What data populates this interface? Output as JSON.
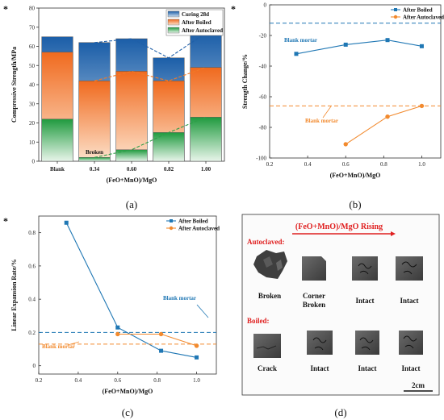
{
  "panels": {
    "a": {
      "label": "(a)",
      "star": "*"
    },
    "b": {
      "label": "(b)",
      "star": "*"
    },
    "c": {
      "label": "(c)",
      "star": "*"
    },
    "d": {
      "label": "(d)"
    }
  },
  "chart_data": [
    {
      "id": "a",
      "type": "bar",
      "ylabel": "Compressive Strength/MPa",
      "xlabel": "(FeO+MnO)/MgO",
      "categories": [
        "Blank",
        "0.34",
        "0.60",
        "0.82",
        "1.00"
      ],
      "ylim": [
        0,
        80
      ],
      "yticks": [
        0,
        10,
        20,
        30,
        40,
        50,
        60,
        70,
        80
      ],
      "series": [
        {
          "name": "Curing 28d",
          "values": [
            65,
            62,
            64,
            54,
            67
          ],
          "color": "#1f6fb8"
        },
        {
          "name": "After Boiled",
          "values": [
            57,
            42,
            47,
            42,
            49
          ],
          "color": "#f08030"
        },
        {
          "name": "After Autoclaved",
          "values": [
            22,
            2,
            6,
            15,
            23
          ],
          "color": "#2e9e48"
        }
      ],
      "annotations": [
        {
          "text": "Broken",
          "category": "0.34"
        }
      ],
      "legend": "top-right"
    },
    {
      "id": "b",
      "type": "line",
      "ylabel": "Strength Change/%",
      "xlabel": "(FeO+MnO)/MgO",
      "xlim": [
        0.2,
        1.1
      ],
      "ylim": [
        -100,
        0
      ],
      "xticks": [
        0.2,
        0.4,
        0.6,
        0.8,
        1.0
      ],
      "yticks": [
        -100,
        -80,
        -60,
        -40,
        -20,
        0
      ],
      "series": [
        {
          "name": "After Boiled",
          "x": [
            0.34,
            0.6,
            0.82,
            1.0
          ],
          "y": [
            -32,
            -26,
            -23,
            -27
          ],
          "color": "#1f77b4",
          "marker": "square",
          "reference": -12
        },
        {
          "name": "After Autoclaved",
          "x": [
            0.6,
            0.82,
            1.0
          ],
          "y": [
            -91,
            -73,
            -66
          ],
          "color": "#f28a2e",
          "marker": "circle",
          "reference": -66
        }
      ],
      "annotations": [
        {
          "text": "Blank mortar",
          "color": "#1f77b4"
        },
        {
          "text": "Blank mortar",
          "color": "#f28a2e"
        }
      ],
      "legend": "top-right"
    },
    {
      "id": "c",
      "type": "line",
      "ylabel": "Linear Expansion Rate/%",
      "xlabel": "(FeO+MnO)/MgO",
      "xlim": [
        0.2,
        1.1
      ],
      "ylim": [
        -0.05,
        0.9
      ],
      "xticks": [
        0.2,
        0.4,
        0.6,
        0.8,
        1.0
      ],
      "yticks": [
        0,
        0.2,
        0.4,
        0.6,
        0.8
      ],
      "series": [
        {
          "name": "After Boiled",
          "x": [
            0.34,
            0.6,
            0.82,
            1.0
          ],
          "y": [
            0.86,
            0.23,
            0.09,
            0.05
          ],
          "color": "#1f77b4",
          "marker": "square",
          "reference": 0.2
        },
        {
          "name": "After Autoclaved",
          "x": [
            0.6,
            0.82,
            1.0
          ],
          "y": [
            0.19,
            0.19,
            0.12
          ],
          "color": "#f28a2e",
          "marker": "circle",
          "reference": 0.13
        }
      ],
      "annotations": [
        {
          "text": "Blank mortar",
          "color": "#1f77b4"
        },
        {
          "text": "Blank mortar",
          "color": "#f28a2e"
        }
      ],
      "legend": "top-right"
    }
  ],
  "photo_panel": {
    "title": "(FeO+MnO)/MgO Rising",
    "autoclaved_label": "Autoclaved:",
    "boiled_label": "Boiled:",
    "autoclaved": [
      "Broken",
      "Corner Broken",
      "Intact",
      "Intact"
    ],
    "boiled": [
      "Crack",
      "Intact",
      "Intact",
      "Intact"
    ],
    "scale": "2cm",
    "accent": "#e02020"
  }
}
